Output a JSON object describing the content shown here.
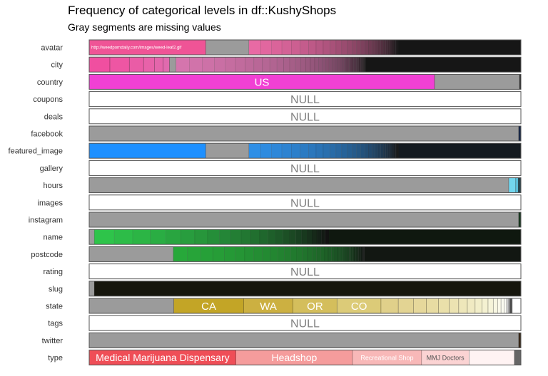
{
  "chart_data": {
    "type": "bar",
    "title": "Frequency of categorical levels in df::KushyShops",
    "subtitle": "Gray segments are missing values",
    "colors": {
      "missing": "#9b9b9b",
      "null_fill": "#ffffff",
      "null_text": "#808080",
      "border": "#555555"
    },
    "null_label": "NULL",
    "rows": [
      {
        "name": "avatar",
        "segments": [
          {
            "v": 0.27,
            "c": "#ef5496",
            "label": "http://weedporndaily.com/images/weed-leaf2.gif",
            "lc": "#ffffff",
            "fs": 6
          },
          {
            "v": 0.1,
            "c": "#9b9b9b"
          },
          {
            "gradient": true,
            "v": 0.63,
            "from": "#e86aa4",
            "to": "#1a1a1a",
            "n": 30,
            "dark": "#161616"
          }
        ]
      },
      {
        "name": "city",
        "segments": [
          {
            "v": 0.048,
            "c": "#f04fa0"
          },
          {
            "v": 0.045,
            "c": "#ee56a3"
          },
          {
            "v": 0.033,
            "c": "#ea5ca6"
          },
          {
            "v": 0.025,
            "c": "#e862a9"
          },
          {
            "v": 0.02,
            "c": "#e466ab"
          },
          {
            "v": 0.015,
            "c": "#e06aae"
          },
          {
            "v": 0.015,
            "c": "#9b9b9b"
          },
          {
            "gradient": true,
            "v": 0.799,
            "from": "#d575ad",
            "to": "#1a1a1a",
            "n": 48,
            "dark": "#161616"
          }
        ]
      },
      {
        "name": "country",
        "segments": [
          {
            "v": 0.8,
            "c": "#f140d4",
            "label": "US",
            "lc": "#ffffff",
            "fs": 15
          },
          {
            "v": 0.197,
            "c": "#9b9b9b"
          },
          {
            "v": 0.003,
            "c": "#222222"
          }
        ]
      },
      {
        "name": "coupons",
        "null": true
      },
      {
        "name": "deals",
        "null": true
      },
      {
        "name": "facebook",
        "segments": [
          {
            "v": 0.995,
            "c": "#9b9b9b"
          },
          {
            "v": 0.005,
            "c": "#1b2a4a"
          }
        ]
      },
      {
        "name": "featured_image",
        "segments": [
          {
            "v": 0.27,
            "c": "#1e90ff"
          },
          {
            "v": 0.1,
            "c": "#9b9b9b"
          },
          {
            "gradient": true,
            "v": 0.63,
            "from": "#2f8fe6",
            "to": "#1a1a1a",
            "n": 30,
            "dark": "#141a20"
          }
        ]
      },
      {
        "name": "gallery",
        "null": true
      },
      {
        "name": "hours",
        "segments": [
          {
            "v": 0.972,
            "c": "#9b9b9b"
          },
          {
            "v": 0.016,
            "c": "#73d6ee"
          },
          {
            "v": 0.006,
            "c": "#5cbcd6"
          },
          {
            "v": 0.006,
            "c": "#2a4650"
          }
        ]
      },
      {
        "name": "images",
        "null": true
      },
      {
        "name": "instagram",
        "segments": [
          {
            "v": 0.995,
            "c": "#9b9b9b"
          },
          {
            "v": 0.005,
            "c": "#1a3a22"
          }
        ]
      },
      {
        "name": "name",
        "segments": [
          {
            "v": 0.012,
            "c": "#9b9b9b"
          },
          {
            "gradient": true,
            "v": 0.988,
            "from": "#2ec44a",
            "to": "#121212",
            "n": 24,
            "dark": "#0f180f"
          }
        ]
      },
      {
        "name": "postcode",
        "segments": [
          {
            "v": 0.195,
            "c": "#9b9b9b"
          },
          {
            "gradient": true,
            "v": 0.805,
            "from": "#27a83a",
            "to": "#141414",
            "n": 40,
            "dark": "#121712"
          }
        ]
      },
      {
        "name": "rating",
        "null": true
      },
      {
        "name": "slug",
        "segments": [
          {
            "v": 0.012,
            "c": "#9b9b9b"
          },
          {
            "v": 0.988,
            "c": "#16160d"
          }
        ]
      },
      {
        "name": "state",
        "segments": [
          {
            "v": 0.196,
            "c": "#9b9b9b"
          },
          {
            "v": 0.162,
            "c": "#c3a526",
            "label": "CA",
            "lc": "#ffffff",
            "fs": 15
          },
          {
            "v": 0.114,
            "c": "#ccb041",
            "label": "WA",
            "lc": "#ffffff",
            "fs": 15
          },
          {
            "v": 0.102,
            "c": "#d4be5c",
            "label": "OR",
            "lc": "#ffffff",
            "fs": 15
          },
          {
            "v": 0.102,
            "c": "#dccb78",
            "label": "CO",
            "lc": "#ffffff",
            "fs": 15
          },
          {
            "v": 0.04,
            "c": "#e0d08a"
          },
          {
            "v": 0.035,
            "c": "#e3d493"
          },
          {
            "v": 0.03,
            "c": "#e6d89b"
          },
          {
            "v": 0.028,
            "c": "#e8dca2"
          },
          {
            "v": 0.025,
            "c": "#eae0aa"
          },
          {
            "v": 0.022,
            "c": "#ece3b2"
          },
          {
            "v": 0.02,
            "c": "#eee7ba"
          },
          {
            "v": 0.018,
            "c": "#f0eac2"
          },
          {
            "v": 0.016,
            "c": "#f2eec9"
          },
          {
            "v": 0.014,
            "c": "#f4f1d1"
          },
          {
            "v": 0.012,
            "c": "#f6f4d9"
          },
          {
            "v": 0.01,
            "c": "#f8f7e2"
          },
          {
            "v": 0.008,
            "c": "#faf9ea"
          },
          {
            "v": 0.007,
            "c": "#fbfbf0"
          },
          {
            "v": 0.006,
            "c": "#fcfcf5"
          },
          {
            "v": 0.005,
            "c": "#cccccc"
          },
          {
            "v": 0.004,
            "c": "#888888"
          },
          {
            "v": 0.004,
            "c": "#555555"
          }
        ]
      },
      {
        "name": "tags",
        "null": true
      },
      {
        "name": "twitter",
        "segments": [
          {
            "v": 0.995,
            "c": "#9b9b9b"
          },
          {
            "v": 0.005,
            "c": "#3a2a1a"
          }
        ]
      },
      {
        "name": "type",
        "segments": [
          {
            "v": 0.34,
            "c": "#ef4e57",
            "label": "Medical Marijuana Dispensary",
            "lc": "#ffffff",
            "fs": 14
          },
          {
            "v": 0.27,
            "c": "#f59c9c",
            "label": "Headshop",
            "lc": "#ffffff",
            "fs": 14
          },
          {
            "v": 0.16,
            "c": "#f8b8b8",
            "label": "Recreational Shop",
            "lc": "#ffffff",
            "fs": 9
          },
          {
            "v": 0.11,
            "c": "#fbd3d3",
            "label": "MMJ Doctors",
            "lc": "#555555",
            "fs": 9
          },
          {
            "v": 0.105,
            "c": "#fff3f3"
          },
          {
            "v": 0.015,
            "c": "#666666"
          }
        ]
      }
    ]
  }
}
